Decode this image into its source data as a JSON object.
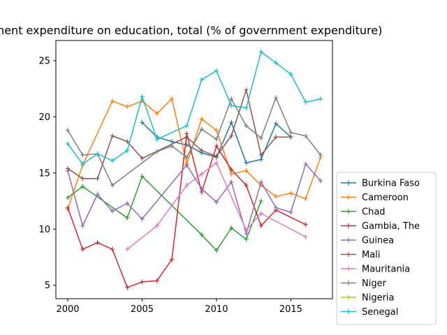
{
  "chart_data": {
    "type": "line",
    "title": "Government expenditure on education, total (% of government expenditure)",
    "xlabel": "",
    "ylabel": "",
    "xlim": [
      1999.2,
      2017.8
    ],
    "ylim": [
      3.8,
      26.8
    ],
    "xticks": [
      2000,
      2005,
      2010,
      2015
    ],
    "yticks": [
      5,
      10,
      15,
      20,
      25
    ],
    "legend_position": "lower-right outside",
    "grid": false,
    "series": [
      {
        "name": "Burkina Faso",
        "color": "#1f77b4",
        "points": [
          [
            2005,
            19.5
          ],
          [
            2006,
            18.2
          ],
          [
            2007,
            17.8
          ],
          [
            2008,
            17.5
          ],
          [
            2009,
            16.8
          ],
          [
            2010,
            16.4
          ],
          [
            2011,
            19.5
          ],
          [
            2012,
            15.9
          ],
          [
            2013,
            16.2
          ],
          [
            2014,
            19.4
          ],
          [
            2015,
            18.2
          ]
        ]
      },
      {
        "name": "Cameroon",
        "color": "#ff7f0e",
        "points": [
          [
            2000,
            11.8
          ],
          [
            2001,
            15.7
          ],
          [
            2003,
            21.4
          ],
          [
            2004,
            20.9
          ],
          [
            2005,
            21.4
          ],
          [
            2006,
            20.3
          ],
          [
            2007,
            21.6
          ],
          [
            2008,
            15.8
          ],
          [
            2009,
            19.8
          ],
          [
            2010,
            18.8
          ],
          [
            2011,
            14.9
          ],
          [
            2012,
            15.2
          ],
          [
            2013,
            13.9
          ],
          [
            2014,
            12.9
          ],
          [
            2015,
            13.2
          ],
          [
            2016,
            12.7
          ],
          [
            2017,
            16.4
          ]
        ]
      },
      {
        "name": "Chad",
        "color": "#2ca02c",
        "points": [
          [
            2000,
            12.8
          ],
          [
            2001,
            13.8
          ],
          [
            2004,
            11.0
          ],
          [
            2005,
            14.7
          ],
          [
            2009,
            9.5
          ],
          [
            2010,
            8.1
          ],
          [
            2011,
            10.1
          ],
          [
            2012,
            9.1
          ],
          [
            2013,
            12.5
          ]
        ]
      },
      {
        "name": "Gambia, The",
        "color": "#d62728",
        "points": [
          [
            2000,
            11.9
          ],
          [
            2001,
            8.2
          ],
          [
            2002,
            8.8
          ],
          [
            2003,
            8.2
          ],
          [
            2004,
            4.8
          ],
          [
            2005,
            5.3
          ],
          [
            2006,
            5.4
          ],
          [
            2007,
            7.3
          ],
          [
            2008,
            18.5
          ],
          [
            2009,
            13.3
          ],
          [
            2010,
            17.4
          ],
          [
            2011,
            15.3
          ],
          [
            2012,
            13.9
          ],
          [
            2013,
            10.3
          ],
          [
            2014,
            11.7
          ],
          [
            2016,
            10.4
          ]
        ]
      },
      {
        "name": "Guinea",
        "color": "#9467bd",
        "points": [
          [
            2000,
            15.2
          ],
          [
            2001,
            10.3
          ],
          [
            2002,
            13.1
          ],
          [
            2003,
            11.6
          ],
          [
            2004,
            12.3
          ],
          [
            2005,
            10.9
          ],
          [
            2008,
            15.7
          ],
          [
            2009,
            13.6
          ],
          [
            2010,
            12.4
          ],
          [
            2011,
            14.2
          ],
          [
            2012,
            9.6
          ],
          [
            2013,
            14.2
          ],
          [
            2014,
            11.9
          ],
          [
            2015,
            11.5
          ],
          [
            2016,
            15.8
          ],
          [
            2017,
            14.3
          ]
        ]
      },
      {
        "name": "Mali",
        "color": "#8c564b",
        "points": [
          [
            2000,
            15.4
          ],
          [
            2001,
            14.5
          ],
          [
            2002,
            14.5
          ],
          [
            2003,
            18.3
          ],
          [
            2004,
            17.8
          ],
          [
            2005,
            16.3
          ],
          [
            2008,
            18.2
          ],
          [
            2009,
            17.0
          ],
          [
            2010,
            16.5
          ],
          [
            2011,
            18.3
          ],
          [
            2012,
            22.4
          ],
          [
            2013,
            16.6
          ],
          [
            2014,
            18.2
          ],
          [
            2015,
            18.2
          ]
        ]
      },
      {
        "name": "Mauritania",
        "color": "#e377c2",
        "points": [
          [
            2004,
            8.2
          ],
          [
            2006,
            10.3
          ],
          [
            2008,
            13.9
          ],
          [
            2009,
            14.9
          ],
          [
            2010,
            15.9
          ],
          [
            2012,
            9.9
          ],
          [
            2013,
            11.4
          ],
          [
            2016,
            9.3
          ]
        ]
      },
      {
        "name": "Niger",
        "color": "#7f7f7f",
        "points": [
          [
            2000,
            18.8
          ],
          [
            2001,
            16.6
          ],
          [
            2002,
            16.7
          ],
          [
            2003,
            13.9
          ],
          [
            2006,
            16.9
          ],
          [
            2007,
            17.4
          ],
          [
            2008,
            16.4
          ],
          [
            2009,
            18.9
          ],
          [
            2010,
            18.0
          ],
          [
            2011,
            21.6
          ],
          [
            2012,
            19.2
          ],
          [
            2013,
            18.1
          ],
          [
            2014,
            21.7
          ],
          [
            2015,
            18.6
          ],
          [
            2016,
            18.3
          ],
          [
            2017,
            16.6
          ]
        ]
      },
      {
        "name": "Nigeria",
        "color": "#bcbd22",
        "points": []
      },
      {
        "name": "Senegal",
        "color": "#17becf",
        "points": [
          [
            2000,
            17.6
          ],
          [
            2001,
            15.8
          ],
          [
            2002,
            16.7
          ],
          [
            2003,
            16.1
          ],
          [
            2004,
            17.0
          ],
          [
            2005,
            21.8
          ],
          [
            2006,
            18.0
          ],
          [
            2008,
            19.2
          ],
          [
            2009,
            23.3
          ],
          [
            2010,
            24.1
          ],
          [
            2011,
            21.0
          ],
          [
            2012,
            20.8
          ],
          [
            2013,
            25.8
          ],
          [
            2014,
            24.8
          ],
          [
            2015,
            23.8
          ],
          [
            2016,
            21.3
          ],
          [
            2017,
            21.6
          ]
        ]
      }
    ]
  }
}
